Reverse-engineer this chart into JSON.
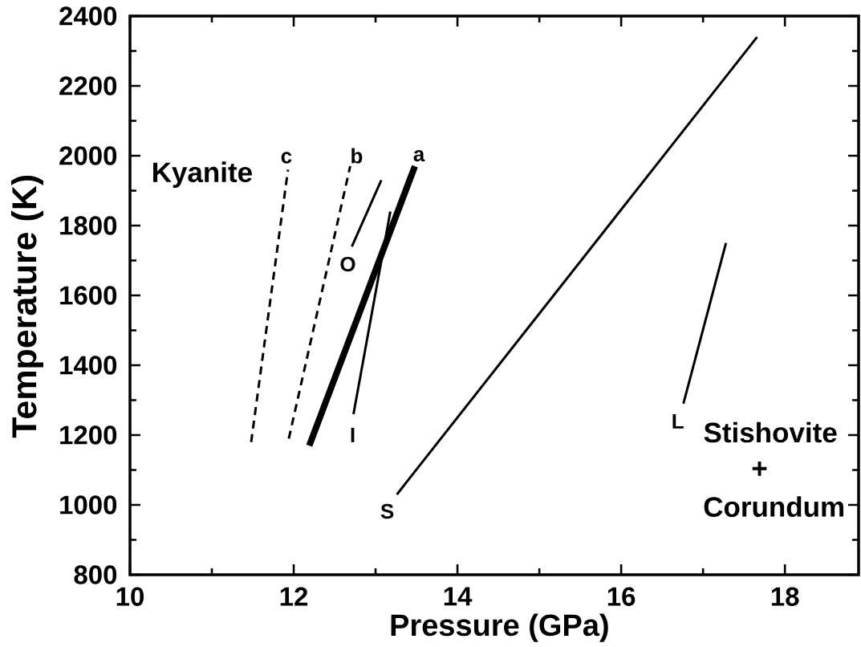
{
  "chart_data": {
    "type": "line",
    "xlabel": "Pressure (GPa)",
    "ylabel": "Temperature (K)",
    "xlim": [
      10,
      18.9
    ],
    "ylim": [
      800,
      2400
    ],
    "xticks": [
      10,
      {
        "value": 11,
        "label": null
      },
      12,
      {
        "value": 13,
        "label": null
      },
      14,
      {
        "value": 15,
        "label": null
      },
      16,
      {
        "value": 17,
        "label": null
      },
      18
    ],
    "yticks": [
      800,
      {
        "value": 900,
        "label": null
      },
      1000,
      {
        "value": 1100,
        "label": null
      },
      1200,
      {
        "value": 1300,
        "label": null
      },
      1400,
      {
        "value": 1500,
        "label": null
      },
      1600,
      {
        "value": 1700,
        "label": null
      },
      1800,
      {
        "value": 1900,
        "label": null
      },
      2000,
      {
        "value": 2100,
        "label": null
      },
      2200,
      {
        "value": 2300,
        "label": null
      },
      2400
    ],
    "series": [
      {
        "name": "a",
        "color": "#000000",
        "line_style": "solid",
        "x": [
          12.19,
          13.48
        ],
        "values": [
          1170,
          1970
        ]
      },
      {
        "name": "b",
        "color": "#000000",
        "line_style": "dashed",
        "x": [
          11.94,
          12.69
        ],
        "values": [
          1190,
          1970
        ]
      },
      {
        "name": "c",
        "color": "#000000",
        "line_style": "dashed",
        "x": [
          11.48,
          11.93
        ],
        "values": [
          1180,
          1960
        ]
      },
      {
        "name": "O",
        "color": "#000000",
        "line_style": "solid",
        "x": [
          12.71,
          13.07
        ],
        "values": [
          1740,
          1930
        ]
      },
      {
        "name": "I",
        "color": "#000000",
        "line_style": "solid",
        "x": [
          12.73,
          13.18
        ],
        "values": [
          1260,
          1840
        ]
      },
      {
        "name": "S",
        "color": "#000000",
        "line_style": "solid",
        "x": [
          13.26,
          17.66
        ],
        "values": [
          1030,
          2340
        ]
      },
      {
        "name": "L",
        "color": "#000000",
        "line_style": "solid",
        "x": [
          16.76,
          17.28
        ],
        "values": [
          1290,
          1750
        ]
      }
    ],
    "annotations": [
      "Kyanite",
      "Stishovite",
      "+",
      "Corundum"
    ]
  }
}
